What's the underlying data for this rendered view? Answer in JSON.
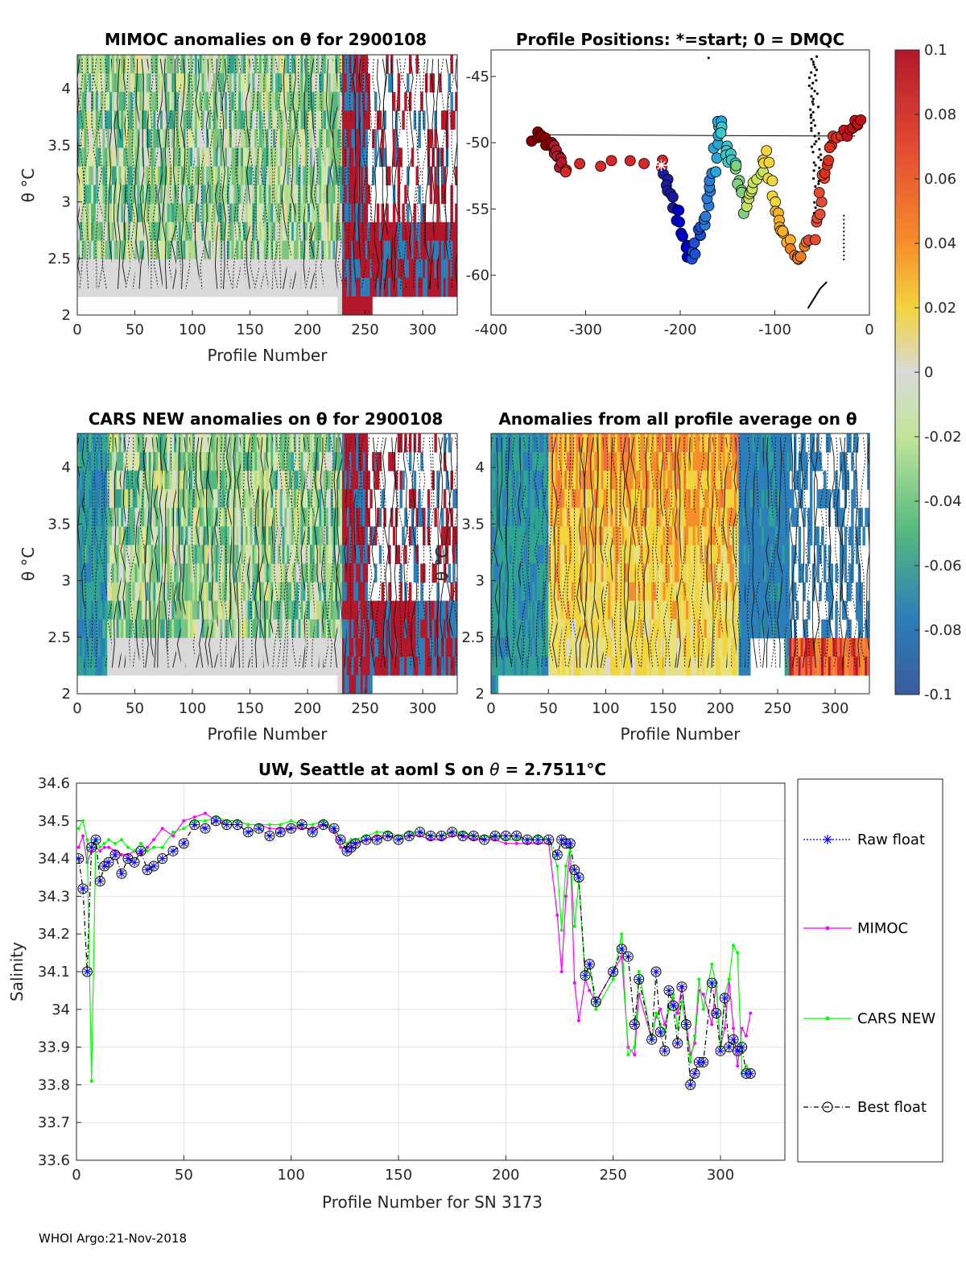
{
  "panels": {
    "mimoc": {
      "title": "MIMOC anomalies on θ  for 2900108",
      "xlabel": "Profile Number",
      "ylabel": "θ °C",
      "xticks": [
        "0",
        "50",
        "100",
        "150",
        "200",
        "250",
        "300"
      ],
      "yticks": [
        "2",
        "2.5",
        "3",
        "3.5",
        "4"
      ]
    },
    "positions": {
      "title": "Profile Positions: *=start; 0 = DMQC",
      "xticks": [
        "-400",
        "-300",
        "-200",
        "-100",
        "0"
      ],
      "yticks": [
        "-45",
        "-50",
        "-55",
        "-60"
      ]
    },
    "cars": {
      "title": "CARS NEW anomalies on θ for 2900108",
      "xlabel": "Profile Number",
      "ylabel": "θ °C",
      "xticks": [
        "0",
        "50",
        "100",
        "150",
        "200",
        "250",
        "300"
      ],
      "yticks": [
        "2",
        "2.5",
        "3",
        "3.5",
        "4"
      ]
    },
    "allavg": {
      "title": "Anomalies from all profile average on θ",
      "xlabel": "Profile Number",
      "ylabel": "θ °C",
      "xticks": [
        "0",
        "50",
        "100",
        "150",
        "200",
        "250",
        "300"
      ],
      "yticks": [
        "2",
        "2.5",
        "3",
        "3.5",
        "4"
      ]
    },
    "colorbar": {
      "ticks": [
        "0.1",
        "0.08",
        "0.06",
        "0.04",
        "0.02",
        "0",
        "-0.02",
        "-0.04",
        "-0.06",
        "-0.08",
        "-0.1"
      ],
      "colors": [
        "#b2182b",
        "#d7301f",
        "#f46d43",
        "#fdae61",
        "#f2d43d",
        "#d9d9d9",
        "#c7e9b4",
        "#7fcdbb",
        "#41b6c4",
        "#2c7fb8",
        "#3b5b9e"
      ]
    },
    "footer": "WHOI Argo:21-Nov-2018"
  },
  "chart_data": [
    {
      "type": "heatmap",
      "title": "MIMOC anomalies on θ  for 2900108",
      "xlabel": "Profile Number",
      "ylabel": "θ °C",
      "xlim": [
        0,
        330
      ],
      "ylim": [
        2,
        4.3
      ]
    },
    {
      "type": "scatter",
      "title": "Profile Positions: *=start; 0 = DMQC",
      "xlim": [
        -400,
        0
      ],
      "ylim": [
        -63,
        -43
      ]
    },
    {
      "type": "heatmap",
      "title": "CARS NEW anomalies on θ for 2900108",
      "xlabel": "Profile Number",
      "ylabel": "θ °C",
      "xlim": [
        0,
        330
      ],
      "ylim": [
        2,
        4.3
      ]
    },
    {
      "type": "heatmap",
      "title": "Anomalies from all profile average on θ",
      "xlabel": "Profile Number",
      "ylabel": "θ °C",
      "xlim": [
        0,
        330
      ],
      "ylim": [
        2,
        4.3
      ]
    },
    {
      "type": "line",
      "title": "UW, Seattle at aoml S on θ = 2.7511°C",
      "title_main": "UW, Seattle at aoml S on ",
      "title_theta": "θ",
      "title_value": " = 2.7511",
      "title_unit": "°C",
      "xlabel": "Profile Number for SN 3173",
      "ylabel": "Salinity",
      "xlim": [
        0,
        330
      ],
      "ylim": [
        33.6,
        34.6
      ],
      "xticks": [
        "0",
        "50",
        "100",
        "150",
        "200",
        "250",
        "300"
      ],
      "yticks": [
        "33.6",
        "33.7",
        "33.8",
        "33.9",
        "34",
        "34.1",
        "34.2",
        "34.3",
        "34.4",
        "34.5",
        "34.6"
      ],
      "series": [
        {
          "name": "Raw float",
          "color": "#0000ff",
          "x": [
            1,
            3,
            5,
            7,
            9,
            11,
            13,
            15,
            18,
            21,
            24,
            27,
            30,
            33,
            36,
            40,
            45,
            50,
            55,
            60,
            65,
            70,
            75,
            80,
            85,
            90,
            95,
            100,
            105,
            110,
            115,
            120,
            123,
            126,
            128,
            130,
            135,
            140,
            145,
            150,
            155,
            160,
            165,
            170,
            175,
            180,
            185,
            190,
            195,
            200,
            205,
            210,
            215,
            220,
            224,
            226,
            228,
            230,
            232,
            234,
            237,
            239,
            242,
            250,
            254,
            257,
            260,
            262,
            268,
            270,
            272,
            274,
            276,
            278,
            280,
            282,
            284,
            286,
            288,
            290,
            292,
            296,
            298,
            300,
            302,
            304,
            306,
            308,
            310,
            312,
            314
          ],
          "y": [
            34.4,
            34.32,
            34.1,
            34.43,
            34.45,
            34.34,
            34.38,
            34.39,
            34.41,
            34.36,
            34.4,
            34.39,
            34.42,
            34.37,
            34.38,
            34.4,
            34.42,
            34.44,
            34.49,
            34.48,
            34.5,
            34.49,
            34.49,
            34.47,
            34.48,
            34.46,
            34.47,
            34.48,
            34.49,
            34.47,
            34.49,
            34.48,
            34.45,
            34.42,
            34.43,
            34.44,
            34.45,
            34.45,
            34.46,
            34.45,
            34.46,
            34.47,
            34.46,
            34.46,
            34.47,
            34.46,
            34.46,
            34.45,
            34.46,
            34.46,
            34.46,
            34.45,
            34.45,
            34.45,
            34.41,
            34.45,
            34.44,
            34.44,
            34.37,
            34.35,
            34.09,
            34.12,
            34.02,
            34.1,
            34.16,
            34.14,
            33.96,
            34.08,
            33.92,
            34.1,
            33.94,
            33.89,
            34.05,
            34.01,
            33.91,
            34.06,
            33.96,
            33.8,
            33.83,
            33.86,
            33.86,
            34.07,
            33.99,
            33.89,
            34.03,
            33.9,
            33.92,
            33.89,
            33.9,
            33.83,
            33.83
          ]
        },
        {
          "name": "MIMOC",
          "color": "#ff00ff",
          "x": [
            1,
            3,
            5,
            7,
            9,
            11,
            13,
            15,
            18,
            21,
            24,
            27,
            30,
            33,
            36,
            40,
            45,
            50,
            55,
            60,
            65,
            70,
            75,
            80,
            85,
            90,
            95,
            100,
            105,
            110,
            115,
            120,
            123,
            126,
            128,
            130,
            135,
            140,
            145,
            150,
            155,
            160,
            165,
            170,
            175,
            180,
            185,
            190,
            195,
            200,
            205,
            210,
            215,
            220,
            224,
            226,
            228,
            230,
            232,
            234,
            237,
            239,
            242,
            250,
            254,
            257,
            260,
            262,
            268,
            270,
            272,
            274,
            276,
            278,
            280,
            282,
            284,
            286,
            288,
            290,
            292,
            296,
            298,
            300,
            302,
            304,
            306,
            308,
            310,
            312,
            314
          ],
          "y": [
            34.43,
            34.46,
            34.39,
            34.42,
            34.43,
            34.42,
            34.43,
            34.43,
            34.42,
            34.41,
            34.41,
            34.42,
            34.41,
            34.43,
            34.45,
            34.48,
            34.46,
            34.5,
            34.51,
            34.52,
            34.5,
            34.5,
            34.5,
            34.49,
            34.49,
            34.48,
            34.48,
            34.48,
            34.48,
            34.48,
            34.49,
            34.47,
            34.43,
            34.43,
            34.45,
            34.44,
            34.45,
            34.46,
            34.46,
            34.46,
            34.46,
            34.46,
            34.45,
            34.45,
            34.46,
            34.46,
            34.45,
            34.45,
            34.45,
            34.44,
            34.44,
            34.44,
            34.44,
            34.44,
            34.25,
            34.1,
            34.3,
            34.43,
            34.07,
            33.97,
            34.08,
            34.05,
            34.02,
            34.1,
            34.14,
            33.9,
            33.88,
            34.04,
            33.92,
            33.98,
            34.0,
            33.96,
            34.0,
            34.03,
            33.99,
            34.06,
            33.97,
            33.88,
            33.91,
            34.05,
            34.04,
            33.96,
            34.07,
            33.9,
            33.95,
            34.08,
            33.95,
            33.85,
            33.95,
            33.93,
            33.99
          ]
        },
        {
          "name": "CARS NEW",
          "color": "#00ff00",
          "x": [
            1,
            3,
            5,
            7,
            9,
            11,
            13,
            15,
            18,
            21,
            24,
            27,
            30,
            33,
            36,
            40,
            45,
            50,
            55,
            60,
            65,
            70,
            75,
            80,
            85,
            90,
            95,
            100,
            105,
            110,
            115,
            120,
            123,
            126,
            128,
            130,
            135,
            140,
            145,
            150,
            155,
            160,
            165,
            170,
            175,
            180,
            185,
            190,
            195,
            200,
            205,
            210,
            215,
            220,
            224,
            226,
            228,
            230,
            232,
            234,
            237,
            239,
            242,
            250,
            254,
            257,
            260,
            262,
            268,
            270,
            272,
            274,
            276,
            278,
            280,
            282,
            284,
            286,
            288,
            290,
            292,
            296,
            298,
            300,
            302,
            304,
            306,
            308,
            310,
            312,
            314
          ],
          "y": [
            34.48,
            34.5,
            34.45,
            33.81,
            34.45,
            34.43,
            34.44,
            34.45,
            34.44,
            34.45,
            34.43,
            34.42,
            34.44,
            34.42,
            34.43,
            34.43,
            34.47,
            34.48,
            34.5,
            34.5,
            34.51,
            34.5,
            34.5,
            34.49,
            34.49,
            34.49,
            34.49,
            34.5,
            34.49,
            34.49,
            34.5,
            34.48,
            34.45,
            34.44,
            34.45,
            34.45,
            34.46,
            34.47,
            34.47,
            34.46,
            34.47,
            34.47,
            34.46,
            34.46,
            34.47,
            34.47,
            34.46,
            34.46,
            34.46,
            34.45,
            34.45,
            34.45,
            34.46,
            34.45,
            34.38,
            34.21,
            34.38,
            34.43,
            34.22,
            34.34,
            34.08,
            34.12,
            34.0,
            34.08,
            34.2,
            33.88,
            33.9,
            34.1,
            33.92,
            33.99,
            33.96,
            33.94,
            34.0,
            34.04,
            33.95,
            34.02,
            33.95,
            33.86,
            33.93,
            34.08,
            34.0,
            34.12,
            34.06,
            33.9,
            34.04,
            34.08,
            34.17,
            34.15,
            33.83,
            33.85,
            33.83
          ]
        },
        {
          "name": "Best float",
          "color": "#000000",
          "x": [
            1,
            3,
            5,
            7,
            9,
            11,
            13,
            15,
            18,
            21,
            24,
            27,
            30,
            33,
            36,
            40,
            45,
            50,
            55,
            60,
            65,
            70,
            75,
            80,
            85,
            90,
            95,
            100,
            105,
            110,
            115,
            120,
            123,
            126,
            128,
            130,
            135,
            140,
            145,
            150,
            155,
            160,
            165,
            170,
            175,
            180,
            185,
            190,
            195,
            200,
            205,
            210,
            215,
            220,
            224,
            226,
            228,
            230,
            232,
            234,
            237,
            239,
            242,
            250,
            254,
            257,
            260,
            262,
            268,
            270,
            272,
            274,
            276,
            278,
            280,
            282,
            284,
            286,
            288,
            290,
            292,
            296,
            298,
            300,
            302,
            304,
            306,
            308,
            310,
            312,
            314
          ],
          "y": [
            34.4,
            34.32,
            34.1,
            34.43,
            34.45,
            34.34,
            34.38,
            34.39,
            34.41,
            34.36,
            34.4,
            34.39,
            34.42,
            34.37,
            34.38,
            34.4,
            34.42,
            34.44,
            34.49,
            34.48,
            34.5,
            34.49,
            34.49,
            34.47,
            34.48,
            34.46,
            34.47,
            34.48,
            34.49,
            34.47,
            34.49,
            34.48,
            34.45,
            34.42,
            34.43,
            34.44,
            34.45,
            34.45,
            34.46,
            34.45,
            34.46,
            34.47,
            34.46,
            34.46,
            34.47,
            34.46,
            34.46,
            34.45,
            34.46,
            34.46,
            34.46,
            34.45,
            34.45,
            34.45,
            34.41,
            34.45,
            34.44,
            34.44,
            34.37,
            34.35,
            34.09,
            34.12,
            34.02,
            34.1,
            34.16,
            34.14,
            33.96,
            34.08,
            33.92,
            34.1,
            33.94,
            33.89,
            34.05,
            34.01,
            33.91,
            34.06,
            33.96,
            33.8,
            33.83,
            33.86,
            33.86,
            34.07,
            33.99,
            33.89,
            34.03,
            33.9,
            33.92,
            33.89,
            33.9,
            33.83,
            33.83
          ]
        }
      ]
    }
  ]
}
